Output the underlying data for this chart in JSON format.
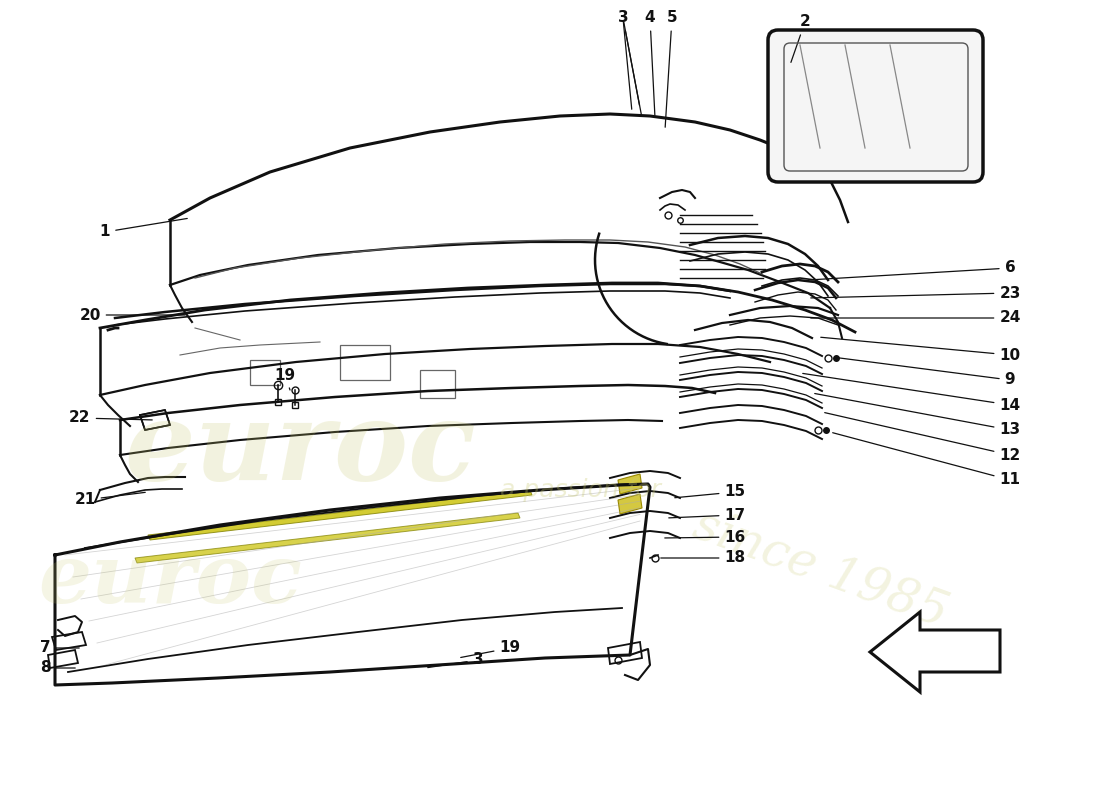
{
  "bg": "#ffffff",
  "lc": "#111111",
  "wm": "#c8c870",
  "fs": 11,
  "labels": [
    [
      1,
      190,
      218,
      105,
      232
    ],
    [
      2,
      790,
      65,
      805,
      22
    ],
    [
      3,
      640,
      108,
      623,
      18
    ],
    [
      4,
      655,
      118,
      650,
      18
    ],
    [
      5,
      665,
      130,
      672,
      18
    ],
    [
      6,
      808,
      280,
      1010,
      268
    ],
    [
      7,
      82,
      648,
      45,
      648
    ],
    [
      8,
      78,
      668,
      45,
      668
    ],
    [
      9,
      832,
      357,
      1010,
      380
    ],
    [
      10,
      818,
      337,
      1010,
      355
    ],
    [
      11,
      830,
      432,
      1010,
      480
    ],
    [
      12,
      822,
      412,
      1010,
      455
    ],
    [
      13,
      812,
      393,
      1010,
      430
    ],
    [
      14,
      800,
      373,
      1010,
      405
    ],
    [
      15,
      672,
      498,
      735,
      492
    ],
    [
      16,
      662,
      538,
      735,
      537
    ],
    [
      17,
      666,
      518,
      735,
      515
    ],
    [
      18,
      658,
      558,
      735,
      558
    ],
    [
      19,
      290,
      390,
      285,
      375
    ],
    [
      20,
      188,
      315,
      90,
      315
    ],
    [
      21,
      148,
      492,
      85,
      500
    ],
    [
      22,
      155,
      420,
      80,
      418
    ],
    [
      23,
      808,
      298,
      1010,
      293
    ],
    [
      24,
      808,
      318,
      1010,
      318
    ],
    [
      19,
      458,
      658,
      510,
      648
    ],
    [
      3,
      425,
      668,
      478,
      660
    ]
  ]
}
